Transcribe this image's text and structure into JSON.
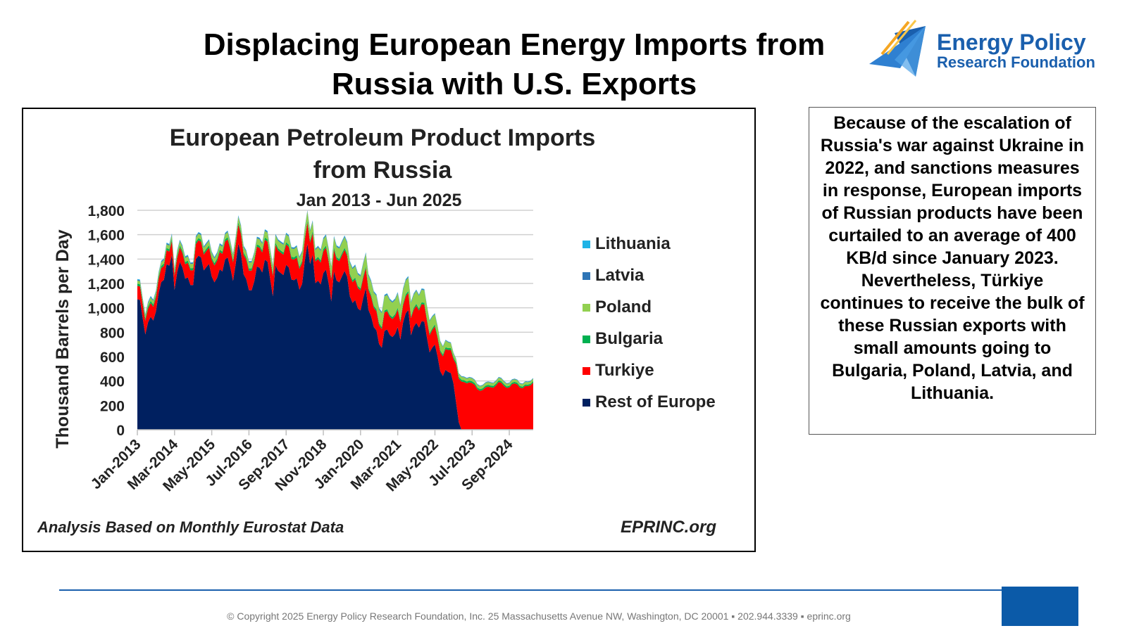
{
  "slide": {
    "title_line1": "Displacing European Energy Imports from",
    "title_line2": "Russia with U.S. Exports"
  },
  "logo": {
    "line1": "Energy Policy",
    "line2": "Research Foundation"
  },
  "colors": {
    "brand_blue": "#1a5fad",
    "logo_orange": "#f5a623",
    "logo_yellow": "#f8c64a",
    "footer_box": "#0b5aa8"
  },
  "text_box": "Because of the escalation of Russia's war against Ukraine in 2022, and sanctions measures in response, European imports of Russian products have been curtailed to an average of 400 KB/d since January 2023. Nevertheless, Türkiye continues to receive the bulk of these Russian exports with small amounts going to Bulgaria, Poland, Latvia, and Lithuania.",
  "footer": "© Copyright 2025 Energy Policy Research Foundation, Inc. 25 Massachusetts Avenue NW, Washington, DC 20001 ▪ 202.944.3339 ▪ eprinc.org",
  "chart_data": {
    "type": "area",
    "stacked": true,
    "title_line1": "European Petroleum Product Imports",
    "title_line2": "from Russia",
    "subtitle": "Jan 2013 - Jun 2025",
    "ylabel": "Thousand Barrels per Day",
    "xlabel": "",
    "ylim": [
      0,
      1800
    ],
    "yticks": [
      0,
      200,
      400,
      600,
      800,
      1000,
      1200,
      1400,
      1600,
      1800
    ],
    "ytick_labels": [
      "0",
      "200",
      "400",
      "600",
      "800",
      "1,000",
      "1,200",
      "1,400",
      "1,600",
      "1,800"
    ],
    "x_start": "Jan-2013",
    "x_end": "Jun-2025",
    "xtick_labels": [
      "Jan-2013",
      "Mar-2014",
      "May-2015",
      "Jul-2016",
      "Sep-2017",
      "Nov-2018",
      "Jan-2020",
      "Mar-2021",
      "May-2022",
      "Jul-2023",
      "Sep-2024"
    ],
    "xtick_step_months": 14,
    "grid": "horizontal",
    "legend_position": "right",
    "note_left": "Analysis Based on Monthly Eurostat Data",
    "note_right": "EPRINC.org",
    "series": [
      {
        "name": "Rest of Europe",
        "color": "#002060",
        "knots": [
          [
            0,
            1070
          ],
          [
            3,
            820
          ],
          [
            8,
            1050
          ],
          [
            11,
            1380
          ],
          [
            14,
            1200
          ],
          [
            17,
            1350
          ],
          [
            20,
            1180
          ],
          [
            24,
            1400
          ],
          [
            27,
            1330
          ],
          [
            30,
            1180
          ],
          [
            33,
            1450
          ],
          [
            36,
            1250
          ],
          [
            39,
            1480
          ],
          [
            42,
            1100
          ],
          [
            45,
            1280
          ],
          [
            48,
            1420
          ],
          [
            51,
            1120
          ],
          [
            54,
            1350
          ],
          [
            57,
            1280
          ],
          [
            61,
            1180
          ],
          [
            64,
            1450
          ],
          [
            67,
            1180
          ],
          [
            70,
            1300
          ],
          [
            73,
            1100
          ],
          [
            77,
            1300
          ],
          [
            80,
            1130
          ],
          [
            83,
            1000
          ],
          [
            86,
            1080
          ],
          [
            88,
            900
          ],
          [
            92,
            680
          ],
          [
            95,
            850
          ],
          [
            98,
            700
          ],
          [
            101,
            900
          ],
          [
            104,
            820
          ],
          [
            107,
            880
          ],
          [
            110,
            720
          ],
          [
            113,
            600
          ],
          [
            115,
            400
          ],
          [
            117,
            550
          ],
          [
            119,
            380
          ],
          [
            121,
            60
          ],
          [
            122,
            0
          ],
          [
            149,
            0
          ]
        ]
      },
      {
        "name": "Turkiye",
        "color": "#ff0000",
        "knots": [
          [
            0,
            110
          ],
          [
            20,
            120
          ],
          [
            40,
            160
          ],
          [
            60,
            170
          ],
          [
            70,
            180
          ],
          [
            80,
            170
          ],
          [
            88,
            160
          ],
          [
            100,
            140
          ],
          [
            110,
            140
          ],
          [
            115,
            160
          ],
          [
            119,
            200
          ],
          [
            120,
            330
          ],
          [
            122,
            380
          ],
          [
            125,
            400
          ],
          [
            128,
            330
          ],
          [
            132,
            340
          ],
          [
            136,
            380
          ],
          [
            140,
            350
          ],
          [
            143,
            380
          ],
          [
            145,
            340
          ],
          [
            147,
            350
          ],
          [
            149,
            400
          ]
        ]
      },
      {
        "name": "Bulgaria",
        "color": "#00b050",
        "knots": [
          [
            0,
            18
          ],
          [
            60,
            18
          ],
          [
            110,
            15
          ],
          [
            120,
            15
          ],
          [
            149,
            12
          ]
        ]
      },
      {
        "name": "Poland",
        "color": "#92d050",
        "knots": [
          [
            0,
            25
          ],
          [
            40,
            45
          ],
          [
            60,
            70
          ],
          [
            80,
            90
          ],
          [
            95,
            120
          ],
          [
            110,
            100
          ],
          [
            120,
            25
          ],
          [
            149,
            20
          ]
        ]
      },
      {
        "name": "Latvia",
        "color": "#2e75b6",
        "knots": [
          [
            0,
            8
          ],
          [
            100,
            8
          ],
          [
            120,
            4
          ],
          [
            149,
            4
          ]
        ]
      },
      {
        "name": "Lithuania",
        "color": "#1fb3e6",
        "knots": [
          [
            0,
            5
          ],
          [
            100,
            5
          ],
          [
            120,
            2
          ],
          [
            149,
            2
          ]
        ]
      }
    ],
    "spikes": [
      [
        13,
        200
      ],
      [
        22,
        100
      ],
      [
        38,
        60
      ],
      [
        52,
        120
      ],
      [
        66,
        200
      ],
      [
        74,
        160
      ],
      [
        88,
        100
      ],
      [
        98,
        140
      ],
      [
        102,
        160
      ]
    ],
    "legend_order": [
      "Lithuania",
      "Latvia",
      "Poland",
      "Bulgaria",
      "Turkiye",
      "Rest of Europe"
    ]
  }
}
